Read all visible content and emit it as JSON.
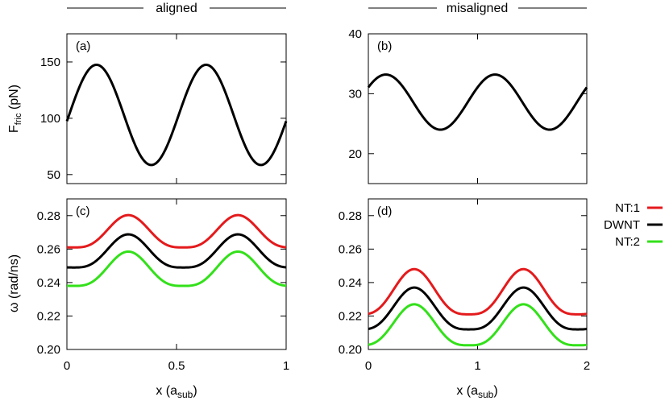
{
  "headers": {
    "left": "aligned",
    "right": "misaligned"
  },
  "chart_data": [
    {
      "id": "a",
      "type": "line",
      "panel_label": "(a)",
      "ylabel_main": "F",
      "ylabel_sub": "fric",
      "ylabel_unit": " (pN)",
      "xlim": [
        0,
        1
      ],
      "ylim": [
        42,
        175
      ],
      "yticks": [
        50,
        100,
        150
      ],
      "ytick_labels": [
        "50",
        "100",
        "150"
      ],
      "series": [
        {
          "color": "#000000",
          "mean": 103,
          "amplitude": 44.5,
          "period": 0.5,
          "peak_x": 0.135
        }
      ]
    },
    {
      "id": "b",
      "type": "line",
      "panel_label": "(b)",
      "xlim": [
        0,
        2
      ],
      "ylim": [
        15,
        40
      ],
      "yticks": [
        20,
        30,
        40
      ],
      "ytick_labels": [
        "20",
        "30",
        "40"
      ],
      "series": [
        {
          "color": "#000000",
          "mean": 28.6,
          "amplitude": 4.6,
          "period": 1.0,
          "peak_x": 0.16
        }
      ]
    },
    {
      "id": "c",
      "type": "line",
      "panel_label": "(c)",
      "ylabel": "ω (rad/ns)",
      "xlabel_main": "x (a",
      "xlabel_sub": "sub",
      "xlabel_end": ")",
      "xlim": [
        0,
        1
      ],
      "ylim": [
        0.2,
        0.29
      ],
      "xticks": [
        0,
        0.5,
        1
      ],
      "xtick_labels": [
        "0",
        "0.5",
        "1"
      ],
      "yticks": [
        0.2,
        0.22,
        0.24,
        0.26,
        0.28
      ],
      "ytick_labels": [
        "0.20",
        "0.22",
        "0.24",
        "0.26",
        "0.28"
      ],
      "series": [
        {
          "name": "NT:1",
          "color": "#e41a1c",
          "base": 0.261,
          "amplitude": 0.0193,
          "period": 0.5,
          "peak_x": 0.28
        },
        {
          "name": "DWNT",
          "color": "#000000",
          "base": 0.249,
          "amplitude": 0.0198,
          "period": 0.5,
          "peak_x": 0.28
        },
        {
          "name": "NT:2",
          "color": "#33e01a",
          "base": 0.238,
          "amplitude": 0.0205,
          "period": 0.5,
          "peak_x": 0.28
        }
      ]
    },
    {
      "id": "d",
      "type": "line",
      "panel_label": "(d)",
      "xlabel_main": "x (a",
      "xlabel_sub": "sub",
      "xlabel_end": ")",
      "xlim": [
        0,
        2
      ],
      "ylim": [
        0.2,
        0.29
      ],
      "xticks": [
        0,
        1,
        2
      ],
      "xtick_labels": [
        "0",
        "1",
        "2"
      ],
      "yticks": [
        0.2,
        0.22,
        0.24,
        0.26,
        0.28
      ],
      "ytick_labels": [
        "0.20",
        "0.22",
        "0.24",
        "0.26",
        "0.28"
      ],
      "series": [
        {
          "name": "NT:1",
          "color": "#e41a1c",
          "base": 0.221,
          "amplitude": 0.027,
          "period": 1.0,
          "peak_x": 0.42
        },
        {
          "name": "DWNT",
          "color": "#000000",
          "base": 0.212,
          "amplitude": 0.025,
          "period": 1.0,
          "peak_x": 0.42
        },
        {
          "name": "NT:2",
          "color": "#33e01a",
          "base": 0.2025,
          "amplitude": 0.0245,
          "period": 1.0,
          "peak_x": 0.42
        }
      ]
    }
  ],
  "legend": {
    "entries": [
      {
        "label": "NT:1",
        "color": "#e41a1c"
      },
      {
        "label": "DWNT",
        "color": "#000000"
      },
      {
        "label": "NT:2",
        "color": "#33e01a"
      }
    ]
  }
}
